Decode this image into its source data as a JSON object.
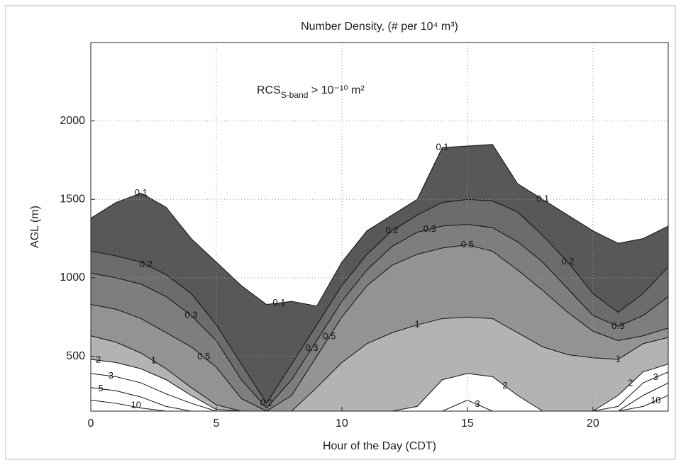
{
  "chart_data": {
    "type": "contour",
    "title": "Number Density, (# per 10⁴ m³)",
    "annotation": {
      "main": "RCS",
      "subscript": "S-band",
      "rest": " > 10⁻¹⁰ m²"
    },
    "x_label": "Hour of the Day (CDT)",
    "y_label": "AGL (m)",
    "x": [
      0,
      1,
      2,
      3,
      4,
      5,
      6,
      7,
      8,
      9,
      10,
      11,
      12,
      13,
      14,
      15,
      16,
      17,
      18,
      19,
      20,
      21,
      22,
      23
    ],
    "series": [
      {
        "name": "0.1",
        "color": "#585858",
        "values": [
          1380,
          1480,
          1540,
          1450,
          1250,
          1100,
          950,
          830,
          850,
          820,
          1100,
          1300,
          1400,
          1500,
          1830,
          1840,
          1850,
          1600,
          1500,
          1400,
          1300,
          1220,
          1250,
          1330
        ]
      },
      {
        "name": "0.2",
        "color": "#6c6c6c",
        "values": [
          1170,
          1140,
          1100,
          1020,
          900,
          700,
          450,
          200,
          450,
          700,
          950,
          1150,
          1300,
          1400,
          1480,
          1500,
          1490,
          1420,
          1270,
          1100,
          900,
          780,
          900,
          1070
        ]
      },
      {
        "name": "0.3",
        "color": "#7e7e7e",
        "values": [
          1030,
          1000,
          960,
          880,
          760,
          600,
          350,
          170,
          350,
          600,
          850,
          1050,
          1200,
          1290,
          1330,
          1340,
          1320,
          1230,
          1100,
          930,
          760,
          690,
          760,
          880
        ]
      },
      {
        "name": "0.5",
        "color": "#939393",
        "values": [
          830,
          800,
          740,
          650,
          560,
          430,
          230,
          150,
          250,
          500,
          750,
          950,
          1080,
          1150,
          1190,
          1210,
          1170,
          1050,
          920,
          780,
          660,
          600,
          630,
          680
        ]
      },
      {
        "name": "1",
        "color": "#b3b3b3",
        "values": [
          630,
          590,
          520,
          420,
          300,
          190,
          150,
          150,
          150,
          300,
          460,
          580,
          650,
          700,
          740,
          750,
          740,
          650,
          560,
          510,
          490,
          480,
          580,
          620
        ]
      },
      {
        "name": "2",
        "color": "#ffffff",
        "values": [
          480,
          460,
          420,
          350,
          250,
          160,
          150,
          150,
          150,
          150,
          150,
          150,
          150,
          180,
          350,
          390,
          370,
          250,
          150,
          150,
          150,
          250,
          400,
          450
        ]
      },
      {
        "name": "3",
        "color": "#ffffff",
        "values": [
          390,
          370,
          330,
          260,
          200,
          150,
          150,
          150,
          150,
          150,
          150,
          150,
          150,
          150,
          150,
          220,
          150,
          150,
          150,
          150,
          150,
          180,
          330,
          400
        ]
      },
      {
        "name": "5",
        "color": "#ffffff",
        "values": [
          300,
          280,
          240,
          180,
          150,
          150,
          150,
          150,
          150,
          150,
          150,
          150,
          150,
          150,
          150,
          150,
          150,
          150,
          150,
          150,
          150,
          150,
          250,
          330
        ]
      },
      {
        "name": "10",
        "color": "#ffffff",
        "values": [
          220,
          200,
          170,
          150,
          150,
          150,
          150,
          150,
          150,
          150,
          150,
          150,
          150,
          150,
          150,
          150,
          150,
          150,
          150,
          150,
          150,
          150,
          180,
          250
        ]
      }
    ],
    "xlim": [
      0,
      23
    ],
    "xticks": [
      0,
      5,
      10,
      15,
      20
    ],
    "ylim": [
      150,
      2500
    ],
    "yticks": [
      500,
      1000,
      1500,
      2000
    ],
    "grid": true
  }
}
